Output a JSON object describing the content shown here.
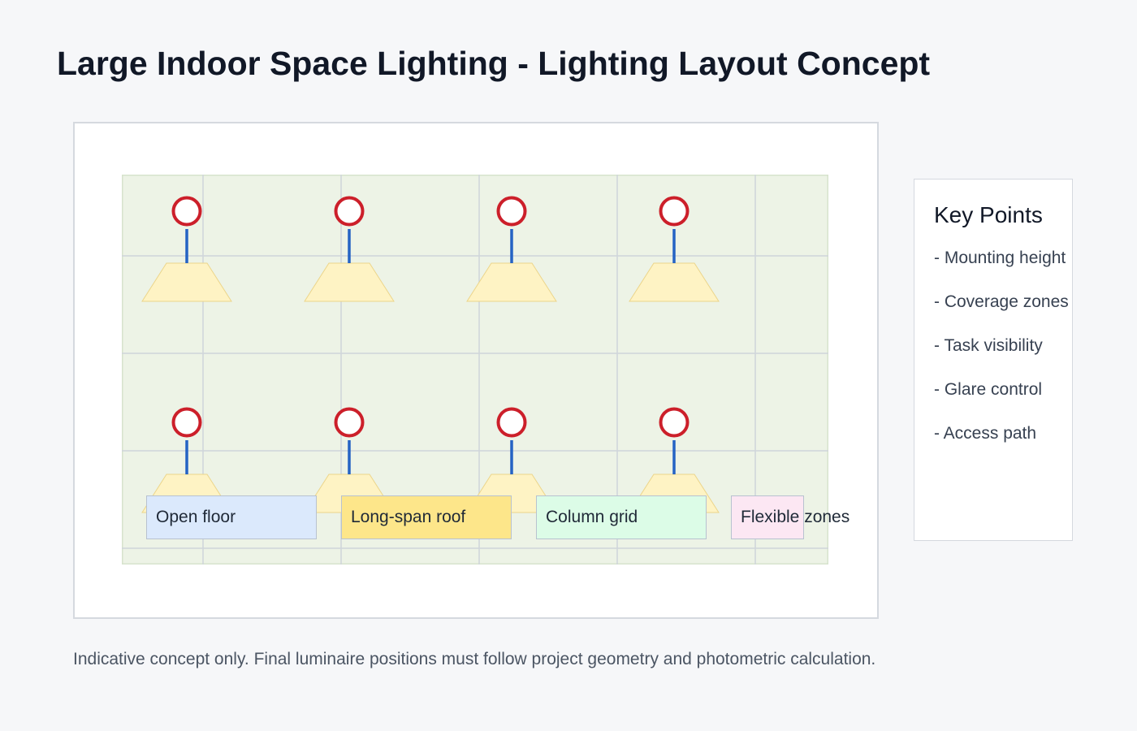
{
  "page": {
    "title": "Large Indoor Space Lighting - Lighting Layout Concept",
    "note": "Indicative concept only. Final luminaire positions must follow project geometry and photometric calculation."
  },
  "diagram": {
    "floor_color": "#edf3e6",
    "grid_color": "#cfd5da",
    "luminaire_ring_color": "#cc1f2a",
    "drop_rod_color": "#2563c4",
    "light_cone_color": "#fef3c4",
    "luminaire_rows": 2,
    "luminaires_per_row": 4
  },
  "zones": [
    {
      "label": "Open floor",
      "color": "#dbe9fc"
    },
    {
      "label": "Long-span roof",
      "color": "#fde68a"
    },
    {
      "label": "Column grid",
      "color": "#dcfce7"
    },
    {
      "label": "Flexible zones",
      "color": "#fce7f3"
    }
  ],
  "key_points": {
    "title": "Key Points",
    "items": [
      "- Mounting height",
      "- Coverage zones",
      "- Task visibility",
      "- Glare control",
      "- Access path"
    ]
  }
}
